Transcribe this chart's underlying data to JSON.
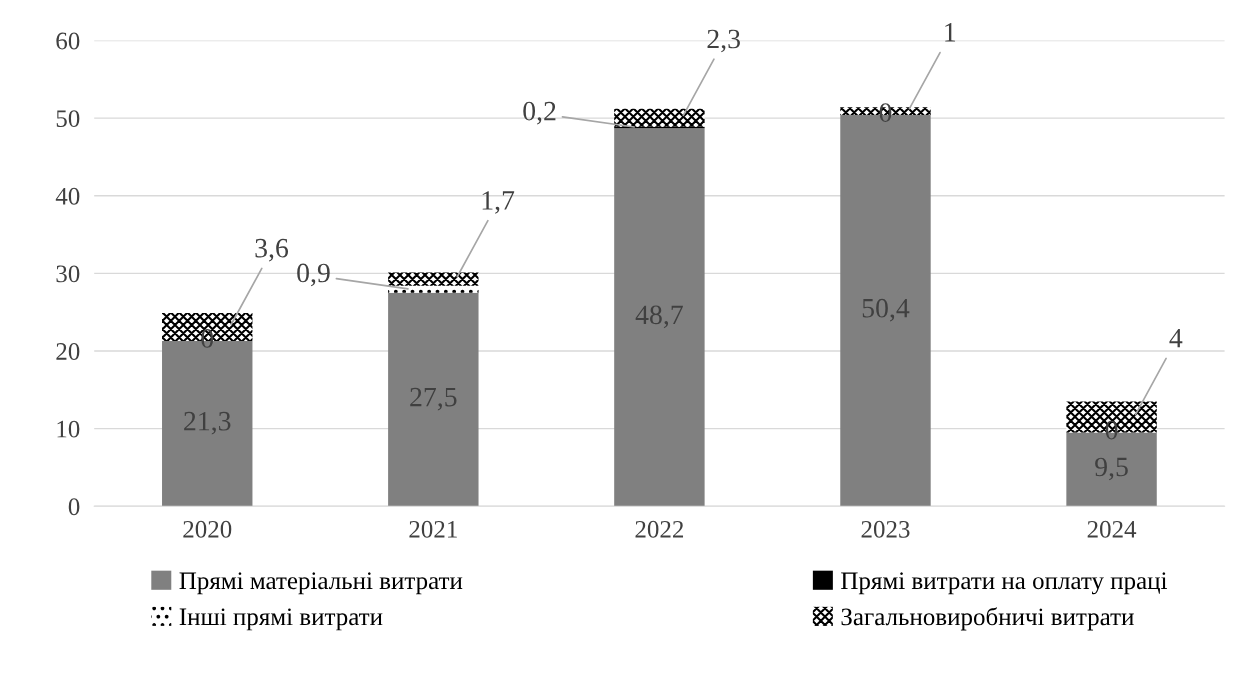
{
  "chart_data": {
    "type": "bar",
    "stacked": true,
    "categories": [
      "2020",
      "2021",
      "2022",
      "2023",
      "2024"
    ],
    "series": [
      {
        "name": "Прямі матеріальні витрати",
        "color": "#808080",
        "values": [
          21.3,
          27.5,
          48.7,
          50.4,
          9.5
        ],
        "value_labels": [
          "21,3",
          "27,5",
          "48,7",
          "50,4",
          "9,5"
        ]
      },
      {
        "name": "Прямі витрати на оплату праці",
        "color": "#000000",
        "values": [
          0,
          null,
          0.2,
          0,
          0
        ],
        "value_labels": [
          "0",
          null,
          "0,2",
          "0",
          "0"
        ]
      },
      {
        "name": "Інші прямі витрати",
        "color": "#000000",
        "values": [
          null,
          0.9,
          null,
          null,
          null
        ],
        "value_labels": [
          null,
          "0,9",
          null,
          null,
          null
        ]
      },
      {
        "name": "Загальновиробничі витрати",
        "color": "#000000",
        "values": [
          3.6,
          1.7,
          2.3,
          1,
          4
        ],
        "value_labels": [
          "3,6",
          "1,7",
          "2,3",
          "1",
          "4"
        ]
      }
    ],
    "ylim": [
      0,
      60
    ],
    "yticks": [
      0,
      10,
      20,
      30,
      40,
      50,
      60
    ],
    "grid": "y",
    "legend": "bottom"
  }
}
